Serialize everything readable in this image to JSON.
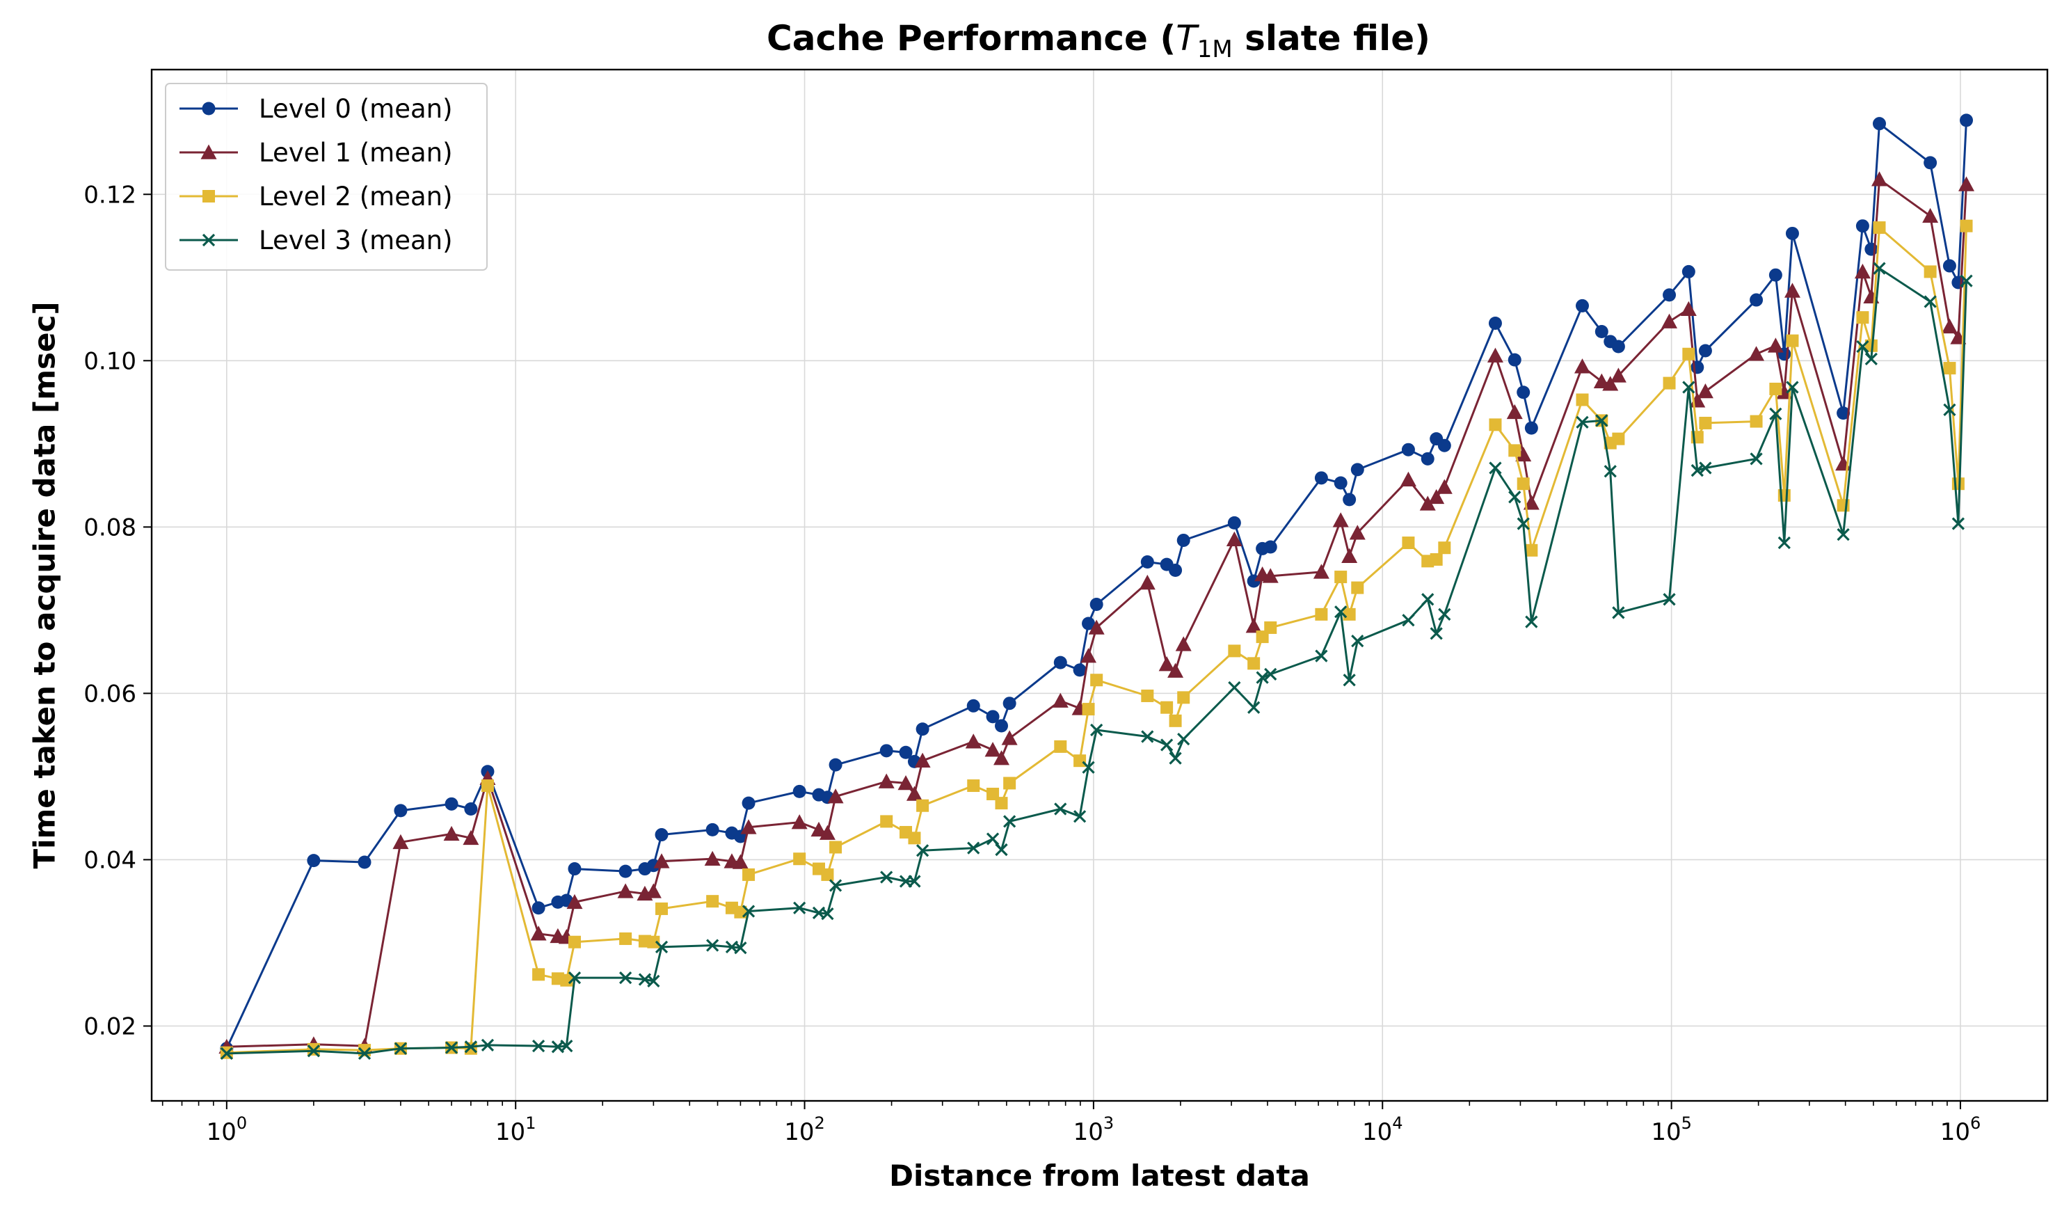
{
  "chart_data": {
    "type": "line",
    "title_prefix": "Cache Performance (",
    "title_symbol": "T",
    "title_subscript": "1M",
    "title_suffix": " slate file)",
    "xlabel": "Distance from latest data",
    "ylabel": "Time taken to acquire data [msec]",
    "xscale": "log",
    "xlim": [
      0.55,
      2000000
    ],
    "ylim": [
      0.011,
      0.135
    ],
    "x_ticks": [
      {
        "value": 1,
        "base": "10",
        "exp": "0"
      },
      {
        "value": 10,
        "base": "10",
        "exp": "1"
      },
      {
        "value": 100,
        "base": "10",
        "exp": "2"
      },
      {
        "value": 1000,
        "base": "10",
        "exp": "3"
      },
      {
        "value": 10000,
        "base": "10",
        "exp": "4"
      },
      {
        "value": 100000,
        "base": "10",
        "exp": "5"
      },
      {
        "value": 1000000,
        "base": "10",
        "exp": "6"
      }
    ],
    "y_ticks": [
      {
        "value": 0.02,
        "label": "0.02"
      },
      {
        "value": 0.04,
        "label": "0.04"
      },
      {
        "value": 0.06,
        "label": "0.06"
      },
      {
        "value": 0.08,
        "label": "0.08"
      },
      {
        "value": 0.1,
        "label": "0.10"
      },
      {
        "value": 0.12,
        "label": "0.12"
      }
    ],
    "grid": true,
    "legend_position": "top-left",
    "x": [
      1,
      2,
      3,
      4,
      6,
      7,
      8,
      12,
      14,
      15,
      16,
      24,
      28,
      30,
      32,
      48,
      56,
      60,
      64,
      96,
      112,
      120,
      128,
      192,
      224,
      240,
      256,
      384,
      448,
      480,
      512,
      768,
      896,
      960,
      1024,
      1536,
      1792,
      1920,
      2048,
      3072,
      3584,
      3840,
      4096,
      6144,
      7168,
      7680,
      8192,
      12288,
      14336,
      15360,
      16384,
      24576,
      28672,
      30720,
      32768,
      49152,
      57344,
      61440,
      65536,
      98304,
      114688,
      122880,
      131072,
      196608,
      229376,
      245760,
      262144,
      393216,
      458752,
      491520,
      524288,
      786432,
      917504,
      983040,
      1048576
    ],
    "series": [
      {
        "name": "Level 0 (mean)",
        "color": "#0b3a8c",
        "marker": "circle",
        "values": [
          0.0173,
          0.0399,
          0.0397,
          0.0459,
          0.0467,
          0.0461,
          0.0506,
          0.0342,
          0.0349,
          0.0351,
          0.0389,
          0.0386,
          0.0389,
          0.0393,
          0.043,
          0.0436,
          0.0432,
          0.0428,
          0.0468,
          0.0482,
          0.0478,
          0.0475,
          0.0514,
          0.0531,
          0.0529,
          0.0518,
          0.0557,
          0.0585,
          0.0572,
          0.0561,
          0.0588,
          0.0637,
          0.0628,
          0.0684,
          0.0707,
          0.0758,
          0.0755,
          0.0748,
          0.0784,
          0.0805,
          0.0735,
          0.0774,
          0.0776,
          0.0859,
          0.0853,
          0.0833,
          0.0869,
          0.0893,
          0.0882,
          0.0906,
          0.0898,
          0.1045,
          0.1001,
          0.0962,
          0.0919,
          0.1066,
          0.1035,
          0.1023,
          0.1017,
          0.1079,
          0.1107,
          0.0992,
          0.1012,
          0.1073,
          0.1103,
          0.1008,
          0.1153,
          0.0937,
          0.1162,
          0.1134,
          0.1285,
          0.1238,
          0.1114,
          0.1094,
          0.1289
        ]
      },
      {
        "name": "Level 1 (mean)",
        "color": "#7a2434",
        "marker": "triangle",
        "values": [
          0.0175,
          0.0178,
          0.0176,
          0.0421,
          0.0431,
          0.0426,
          0.0498,
          0.0311,
          0.0308,
          0.0307,
          0.0349,
          0.0362,
          0.0359,
          0.0362,
          0.0398,
          0.0401,
          0.0398,
          0.0397,
          0.0439,
          0.0445,
          0.0436,
          0.0432,
          0.0476,
          0.0494,
          0.0492,
          0.0479,
          0.0519,
          0.0542,
          0.0532,
          0.0522,
          0.0546,
          0.0591,
          0.0582,
          0.0645,
          0.0679,
          0.0733,
          0.0635,
          0.0627,
          0.0659,
          0.0785,
          0.0681,
          0.0743,
          0.0741,
          0.0746,
          0.0808,
          0.0765,
          0.0793,
          0.0857,
          0.0828,
          0.0836,
          0.0848,
          0.1006,
          0.0938,
          0.0887,
          0.0829,
          0.0993,
          0.0975,
          0.0972,
          0.0982,
          0.1047,
          0.1062,
          0.0952,
          0.0963,
          0.1008,
          0.1018,
          0.0962,
          0.1084,
          0.0876,
          0.1107,
          0.1077,
          0.1218,
          0.1174,
          0.1041,
          0.1028,
          0.1212
        ]
      },
      {
        "name": "Level 2 (mean)",
        "color": "#e3b934",
        "marker": "square",
        "values": [
          0.0168,
          0.0172,
          0.0171,
          0.0173,
          0.0174,
          0.0173,
          0.0489,
          0.0262,
          0.0257,
          0.0255,
          0.0301,
          0.0305,
          0.0302,
          0.0301,
          0.0341,
          0.035,
          0.0342,
          0.0337,
          0.0382,
          0.0401,
          0.0389,
          0.0382,
          0.0415,
          0.0446,
          0.0433,
          0.0426,
          0.0465,
          0.0489,
          0.0479,
          0.0468,
          0.0492,
          0.0536,
          0.0519,
          0.0581,
          0.0616,
          0.0597,
          0.0583,
          0.0567,
          0.0595,
          0.0651,
          0.0636,
          0.0668,
          0.0679,
          0.0695,
          0.074,
          0.0695,
          0.0727,
          0.0781,
          0.0759,
          0.0761,
          0.0775,
          0.0923,
          0.0892,
          0.0852,
          0.0772,
          0.0953,
          0.0928,
          0.0901,
          0.0906,
          0.0973,
          0.1008,
          0.0908,
          0.0925,
          0.0927,
          0.0966,
          0.0838,
          0.1024,
          0.0826,
          0.1052,
          0.1018,
          0.116,
          0.1107,
          0.0991,
          0.0852,
          0.1162
        ]
      },
      {
        "name": "Level 3 (mean)",
        "color": "#0b5a4c",
        "marker": "x",
        "values": [
          0.0167,
          0.017,
          0.0167,
          0.0173,
          0.0174,
          0.0175,
          0.0177,
          0.0176,
          0.0175,
          0.0176,
          0.0258,
          0.0258,
          0.0256,
          0.0254,
          0.0295,
          0.0297,
          0.0295,
          0.0294,
          0.0338,
          0.0342,
          0.0336,
          0.0335,
          0.0369,
          0.0379,
          0.0374,
          0.0374,
          0.0411,
          0.0414,
          0.0425,
          0.0412,
          0.0446,
          0.0461,
          0.0452,
          0.0511,
          0.0556,
          0.0548,
          0.0538,
          0.0522,
          0.0545,
          0.0607,
          0.0583,
          0.0619,
          0.0623,
          0.0645,
          0.0698,
          0.0616,
          0.0663,
          0.0688,
          0.0713,
          0.0672,
          0.0695,
          0.0871,
          0.0836,
          0.0804,
          0.0686,
          0.0926,
          0.0928,
          0.0867,
          0.0697,
          0.0713,
          0.0968,
          0.0868,
          0.0871,
          0.0882,
          0.0936,
          0.0781,
          0.0968,
          0.0791,
          0.1017,
          0.1002,
          0.1111,
          0.1071,
          0.0941,
          0.0804,
          0.1096
        ]
      }
    ]
  }
}
